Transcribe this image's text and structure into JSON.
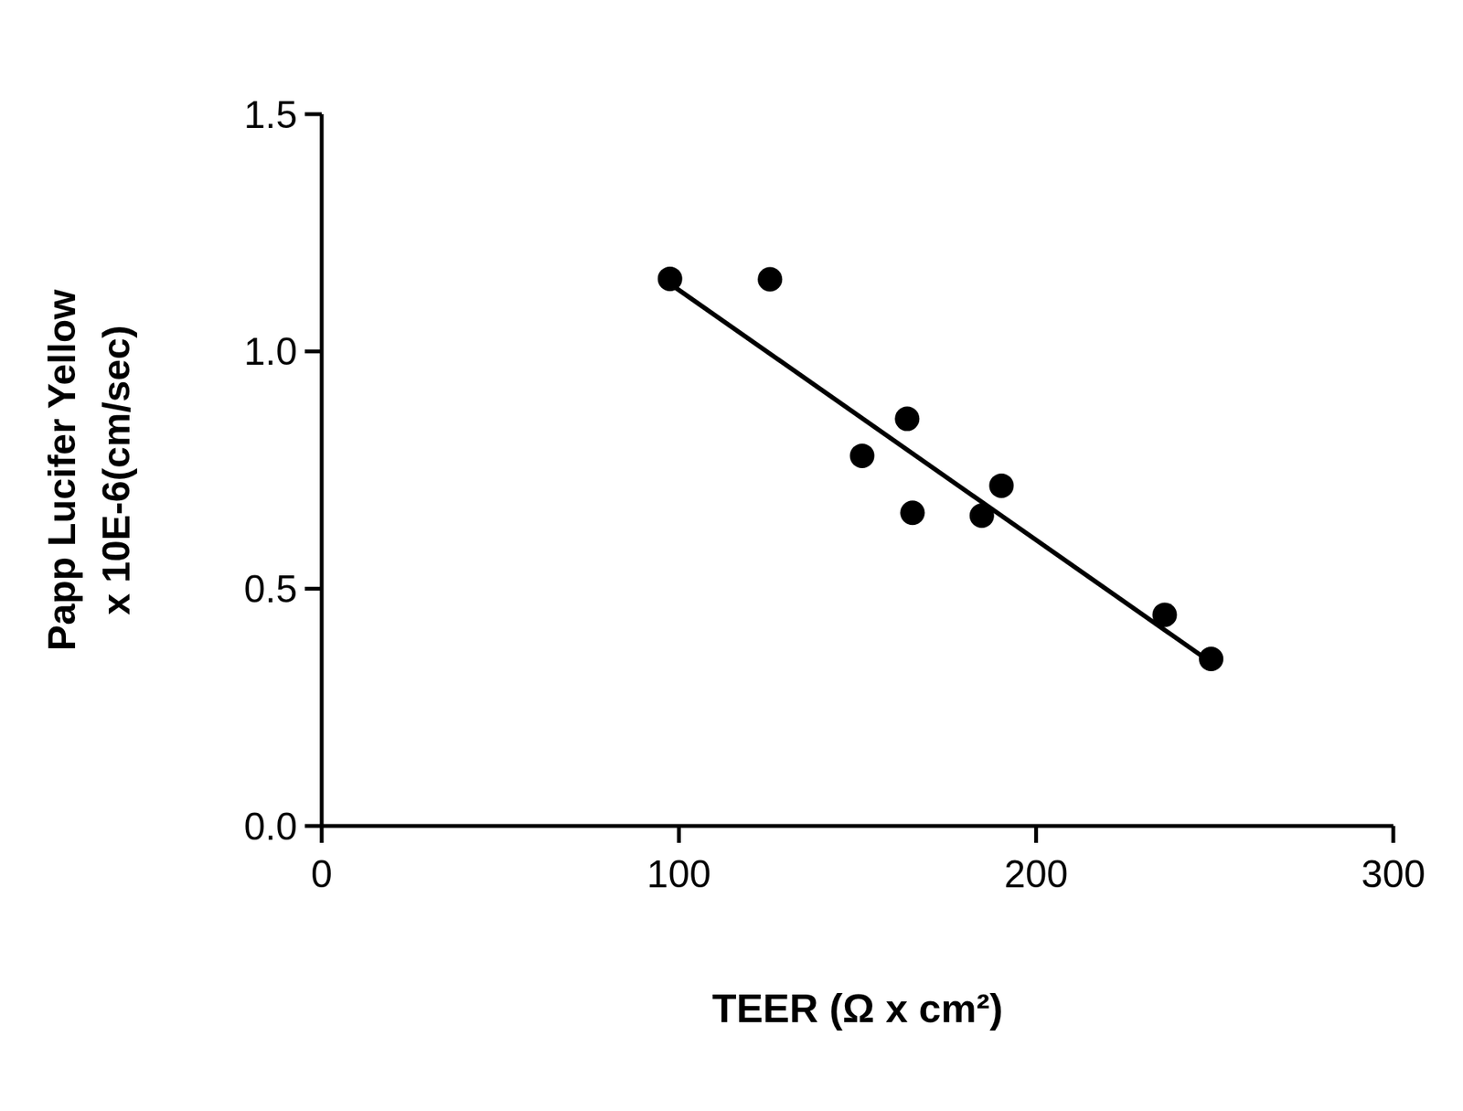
{
  "chart_data": {
    "type": "scatter",
    "x_label": "TEER (Ω x cm²)",
    "y_label": [
      "Papp Lucifer Yellow",
      "x 10E-6(cm/sec)"
    ],
    "xlim": [
      0,
      300
    ],
    "xticks": [
      0,
      100,
      200,
      300
    ],
    "ylim": [
      0,
      1.5
    ],
    "yticks": [
      {
        "value": 0,
        "label": "0.0"
      },
      {
        "value": 0.5,
        "label": "0.5"
      },
      {
        "value": 1,
        "label": "1.0"
      },
      {
        "value": 1.5,
        "label": "1.5"
      }
    ],
    "grid": false,
    "series": [
      {
        "type": "scatter",
        "color": "#000000",
        "marker": "circle",
        "x": [
          97.5,
          125.5,
          151.3,
          163.9,
          165.4,
          184.8,
          190.3,
          236,
          249
        ],
        "values": [
          1.153,
          1.152,
          0.78,
          0.858,
          0.66,
          0.654,
          0.717,
          0.445,
          0.352
        ]
      },
      {
        "type": "line",
        "color": "#000000",
        "x": [
          98,
          247
        ],
        "values": [
          1.14,
          0.355
        ]
      }
    ]
  }
}
